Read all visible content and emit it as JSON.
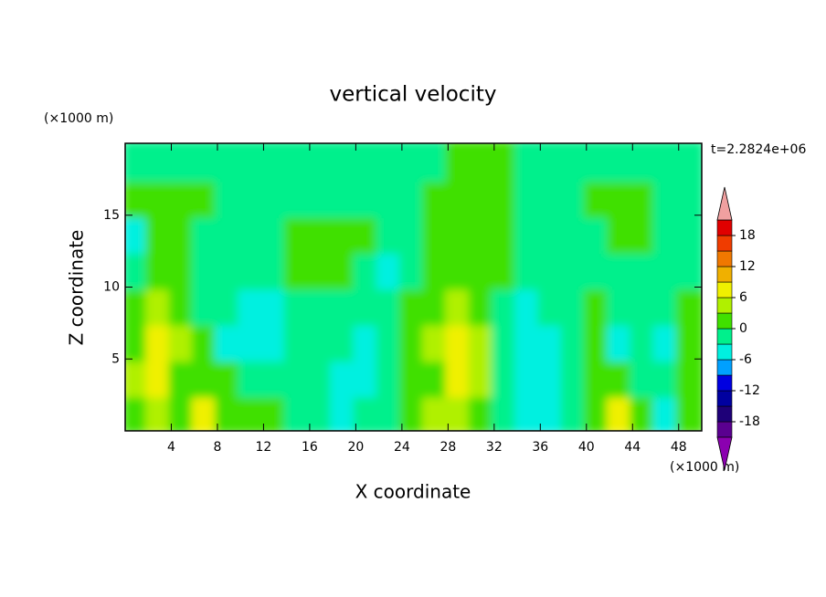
{
  "chart_data": {
    "type": "contour",
    "title": "vertical velocity",
    "xlabel": "X coordinate",
    "ylabel": "Z coordinate",
    "x_unit": "(×1000 m)",
    "y_unit": "(×1000 m)",
    "time_label": "t=2.2824e+06",
    "xlim": [
      0,
      50
    ],
    "ylim": [
      0,
      20
    ],
    "xticks": [
      4,
      8,
      12,
      16,
      20,
      24,
      28,
      32,
      36,
      40,
      44,
      48
    ],
    "yticks": [
      5,
      10,
      15
    ],
    "x": [
      1,
      3,
      5,
      7,
      9,
      11,
      13,
      15,
      17,
      19,
      21,
      23,
      25,
      27,
      29,
      31,
      33,
      35,
      37,
      39,
      41,
      43,
      45,
      47,
      49
    ],
    "y": [
      1.25,
      3.75,
      6.25,
      8.75,
      11.25,
      13.75,
      16.25,
      18.75
    ],
    "z": [
      [
        1,
        5,
        2,
        6,
        1,
        1,
        1,
        -1,
        -2,
        -4,
        -1,
        -2,
        1,
        3,
        4,
        2,
        -1,
        -4,
        -4,
        -2,
        1,
        6,
        1,
        -4,
        1
      ],
      [
        4,
        6,
        2,
        1,
        1,
        -1,
        -1,
        -1,
        -1,
        -4,
        -4,
        -1,
        1,
        2,
        6,
        4,
        -1,
        -4,
        -4,
        -2,
        1,
        1,
        -1,
        -1,
        1
      ],
      [
        2,
        6,
        3,
        1,
        -4,
        -4,
        -4,
        -1,
        -1,
        -1,
        -4,
        -1,
        1,
        3,
        8,
        4,
        -1,
        -4,
        -4,
        -1,
        1,
        -4,
        -1,
        -4,
        1
      ],
      [
        1,
        3,
        2,
        -1,
        -1,
        -4,
        -4,
        -1,
        -1,
        -1,
        -1,
        -1,
        1,
        2,
        4,
        2,
        -1,
        -4,
        -1,
        -1,
        1,
        -1,
        -1,
        -1,
        1
      ],
      [
        -1,
        1,
        1,
        -1,
        -1,
        -1,
        -1,
        1,
        1,
        1,
        -1,
        -4,
        -1,
        1,
        2,
        1,
        1,
        -1,
        -1,
        -1,
        -1,
        -1,
        -1,
        -1,
        -1
      ],
      [
        -4,
        1,
        1,
        -1,
        -1,
        -1,
        -1,
        1,
        1,
        1,
        1,
        -1,
        -1,
        1,
        1,
        1,
        1,
        -1,
        -1,
        -1,
        -1,
        1,
        1,
        -1,
        -1
      ],
      [
        1,
        1,
        1,
        1,
        -1,
        -1,
        -1,
        -1,
        -1,
        -1,
        -1,
        -1,
        -1,
        1,
        1,
        1,
        1,
        -1,
        -1,
        -1,
        1,
        1,
        1,
        -1,
        -1
      ],
      [
        -1,
        -1,
        -1,
        -1,
        -1,
        -1,
        -1,
        -1,
        -1,
        -1,
        -1,
        -1,
        -1,
        -1,
        1,
        1,
        1,
        -1,
        -1,
        -1,
        -1,
        -1,
        -1,
        -1,
        -1
      ]
    ],
    "colorbar": {
      "levels": [
        -21,
        -18,
        -15,
        -12,
        -9,
        -6,
        -3,
        0,
        3,
        6,
        9,
        12,
        15,
        18,
        21
      ],
      "colors": [
        "#5a0090",
        "#1e0078",
        "#0000a0",
        "#0000e0",
        "#00a0ff",
        "#00f0e0",
        "#00f08c",
        "#40e000",
        "#b0f000",
        "#f0f000",
        "#f0b000",
        "#f07800",
        "#f03c00",
        "#e00000"
      ],
      "under_color": "#8b00b0",
      "over_color": "#f0a0a0",
      "ticks": [
        -18,
        -12,
        -6,
        0,
        6,
        12,
        18
      ]
    }
  }
}
